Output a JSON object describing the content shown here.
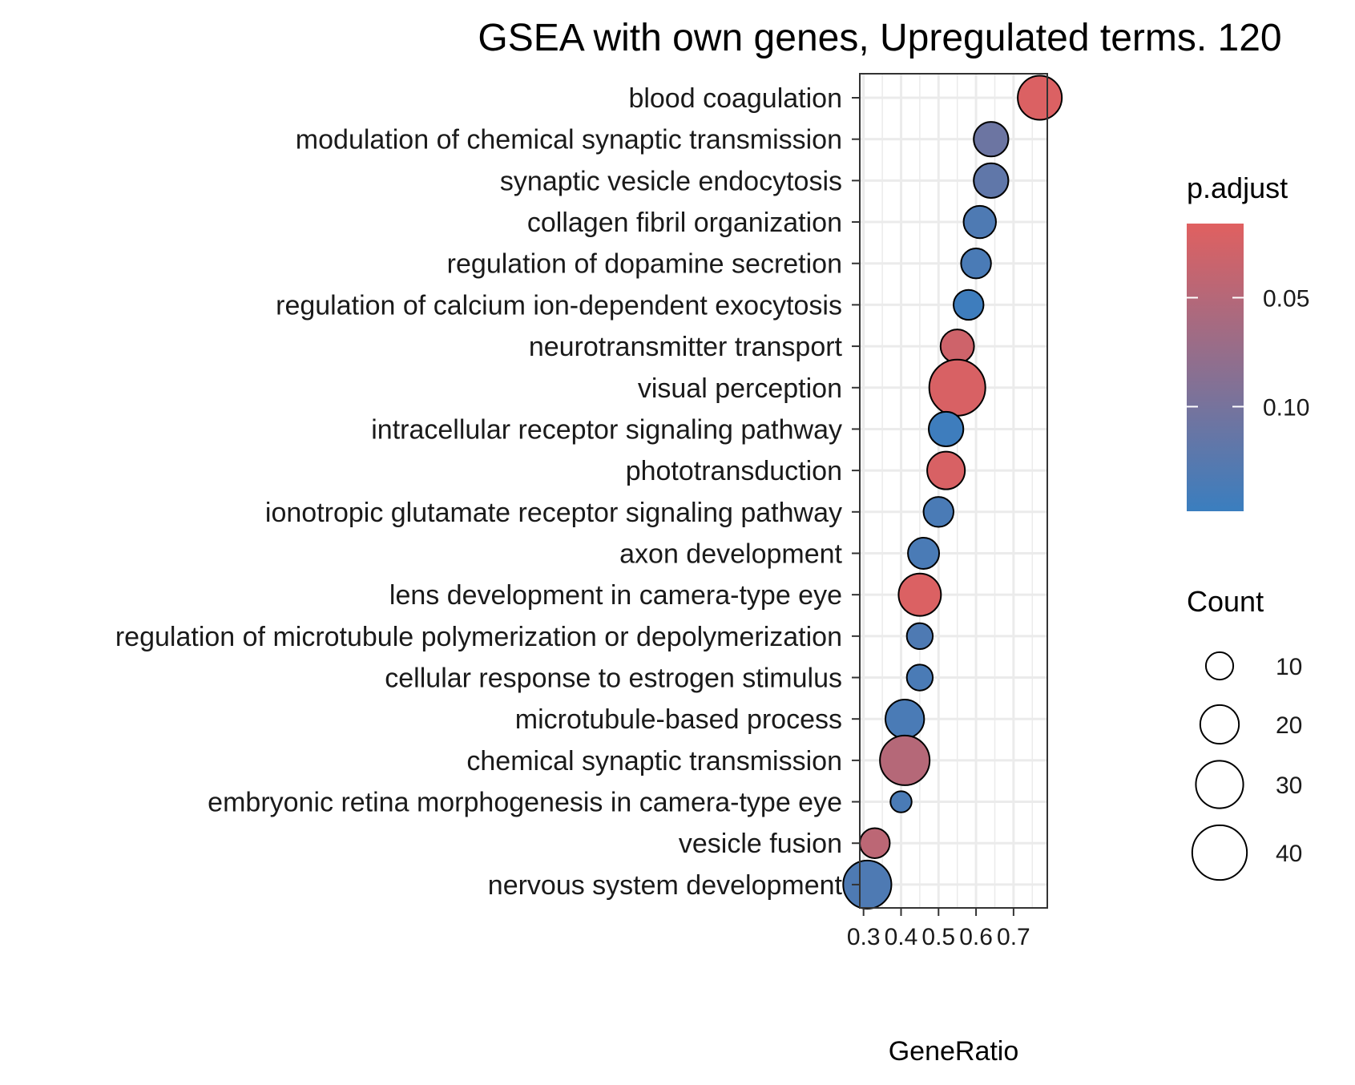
{
  "chart_data": {
    "type": "scatter",
    "title": "GSEA with own genes, Upregulated terms. 120",
    "xlabel": "GeneRatio",
    "ylabel": "",
    "xlim": [
      0.29,
      0.79
    ],
    "x_ticks": [
      0.3,
      0.4,
      0.5,
      0.6,
      0.7
    ],
    "x_tick_labels": [
      "0.3",
      "0.4",
      "0.5",
      "0.6",
      "0.7"
    ],
    "grid": true,
    "categories": [
      "blood coagulation",
      "modulation of chemical synaptic transmission",
      "synaptic vesicle endocytosis",
      "collagen fibril organization",
      "regulation of dopamine secretion",
      "regulation of calcium ion-dependent exocytosis",
      "neurotransmitter transport",
      "visual perception",
      "intracellular receptor signaling pathway",
      "phototransduction",
      "ionotropic glutamate receptor signaling pathway",
      "axon development",
      "lens development in camera-type eye",
      "regulation of microtubule polymerization or depolymerization",
      "cellular response to estrogen stimulus",
      "microtubule-based process",
      "chemical synaptic transmission",
      "embryonic retina morphogenesis in camera-type eye",
      "vesicle fusion",
      "nervous system development"
    ],
    "points": [
      {
        "term": "blood coagulation",
        "gene_ratio": 0.77,
        "count": 26,
        "p_adjust": 0.02
      },
      {
        "term": "modulation of chemical synaptic transmission",
        "gene_ratio": 0.64,
        "count": 16,
        "p_adjust": 0.108
      },
      {
        "term": "synaptic vesicle endocytosis",
        "gene_ratio": 0.64,
        "count": 16,
        "p_adjust": 0.118
      },
      {
        "term": "collagen fibril organization",
        "gene_ratio": 0.61,
        "count": 14,
        "p_adjust": 0.132
      },
      {
        "term": "regulation of dopamine secretion",
        "gene_ratio": 0.6,
        "count": 12,
        "p_adjust": 0.135
      },
      {
        "term": "regulation of calcium ion-dependent exocytosis",
        "gene_ratio": 0.58,
        "count": 12,
        "p_adjust": 0.145
      },
      {
        "term": "neurotransmitter transport",
        "gene_ratio": 0.55,
        "count": 15,
        "p_adjust": 0.03
      },
      {
        "term": "visual perception",
        "gene_ratio": 0.55,
        "count": 42,
        "p_adjust": 0.022
      },
      {
        "term": "intracellular receptor signaling pathway",
        "gene_ratio": 0.52,
        "count": 16,
        "p_adjust": 0.145
      },
      {
        "term": "phototransduction",
        "gene_ratio": 0.52,
        "count": 19,
        "p_adjust": 0.022
      },
      {
        "term": "ionotropic glutamate receptor signaling pathway",
        "gene_ratio": 0.5,
        "count": 12,
        "p_adjust": 0.135
      },
      {
        "term": "axon development",
        "gene_ratio": 0.46,
        "count": 13,
        "p_adjust": 0.135
      },
      {
        "term": "lens development in camera-type eye",
        "gene_ratio": 0.45,
        "count": 24,
        "p_adjust": 0.02
      },
      {
        "term": "regulation of microtubule polymerization or depolymerization",
        "gene_ratio": 0.45,
        "count": 9,
        "p_adjust": 0.132
      },
      {
        "term": "cellular response to estrogen stimulus",
        "gene_ratio": 0.45,
        "count": 9,
        "p_adjust": 0.135
      },
      {
        "term": "microtubule-based process",
        "gene_ratio": 0.41,
        "count": 20,
        "p_adjust": 0.135
      },
      {
        "term": "chemical synaptic transmission",
        "gene_ratio": 0.41,
        "count": 33,
        "p_adjust": 0.05
      },
      {
        "term": "embryonic retina morphogenesis in camera-type eye",
        "gene_ratio": 0.4,
        "count": 6,
        "p_adjust": 0.135
      },
      {
        "term": "vesicle fusion",
        "gene_ratio": 0.33,
        "count": 12,
        "p_adjust": 0.045
      },
      {
        "term": "nervous system development",
        "gene_ratio": 0.31,
        "count": 31,
        "p_adjust": 0.132
      }
    ],
    "color_legend": {
      "title": "p.adjust",
      "low_color": "#e06060",
      "high_color": "#3a7ebf",
      "range": [
        0.016,
        0.148
      ],
      "ticks": [
        0.05,
        0.1
      ],
      "tick_labels": [
        "0.05",
        "0.10"
      ]
    },
    "size_legend": {
      "title": "Count",
      "values": [
        10,
        20,
        30,
        40
      ],
      "labels": [
        "10",
        "20",
        "30",
        "40"
      ]
    },
    "colors": {
      "grid": "#ebebeb",
      "panel_border": "#333333",
      "point_stroke": "#000000"
    }
  }
}
